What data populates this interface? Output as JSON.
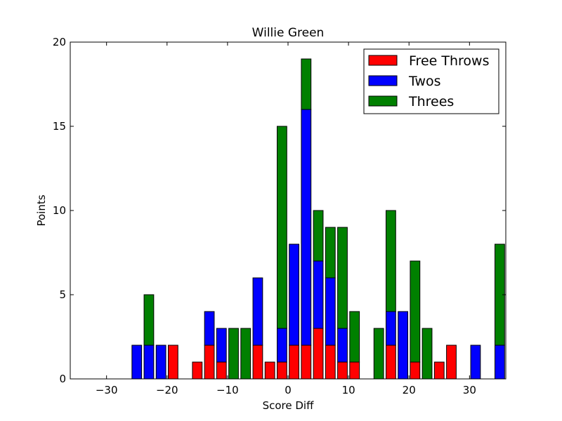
{
  "chart_data": {
    "type": "bar",
    "stacked": true,
    "title": "Willie Green",
    "xlabel": "Score Diff",
    "ylabel": "Points",
    "xlim": [
      -36,
      36
    ],
    "ylim": [
      0,
      20
    ],
    "xticks": [
      -30,
      -20,
      -10,
      0,
      10,
      20,
      30
    ],
    "xtick_labels": [
      "−30",
      "−20",
      "−10",
      "0",
      "10",
      "20",
      "30"
    ],
    "yticks": [
      0,
      5,
      10,
      15,
      20
    ],
    "ytick_labels": [
      "0",
      "5",
      "10",
      "15",
      "20"
    ],
    "bar_width": 1.6,
    "x": [
      -35,
      -33,
      -31,
      -29,
      -27,
      -25,
      -23,
      -21,
      -19,
      -17,
      -15,
      -13,
      -11,
      -9,
      -7,
      -5,
      -3,
      -1,
      1,
      3,
      5,
      7,
      9,
      11,
      13,
      15,
      17,
      19,
      21,
      23,
      25,
      27,
      29,
      31,
      33,
      35
    ],
    "series": [
      {
        "name": "Free Throws",
        "color": "#ff0000",
        "values": [
          0,
          0,
          0,
          0,
          0,
          0,
          0,
          0,
          2,
          0,
          1,
          2,
          1,
          0,
          0,
          2,
          1,
          1,
          2,
          2,
          3,
          2,
          1,
          1,
          0,
          0,
          2,
          0,
          1,
          0,
          1,
          2,
          0,
          0,
          0,
          0
        ]
      },
      {
        "name": "Twos",
        "color": "#0000ff",
        "values": [
          0,
          0,
          0,
          0,
          0,
          2,
          2,
          2,
          0,
          0,
          0,
          2,
          2,
          0,
          0,
          4,
          0,
          2,
          6,
          14,
          4,
          4,
          2,
          0,
          0,
          0,
          2,
          4,
          0,
          0,
          0,
          0,
          0,
          2,
          0,
          2
        ]
      },
      {
        "name": "Threes",
        "color": "#008000",
        "values": [
          0,
          0,
          0,
          0,
          0,
          0,
          3,
          0,
          0,
          0,
          0,
          0,
          0,
          3,
          3,
          0,
          0,
          12,
          0,
          3,
          3,
          3,
          6,
          3,
          0,
          3,
          6,
          0,
          6,
          3,
          0,
          0,
          0,
          0,
          0,
          6
        ]
      }
    ],
    "legend": {
      "position": "top-right",
      "frame": true
    },
    "grid": false
  }
}
